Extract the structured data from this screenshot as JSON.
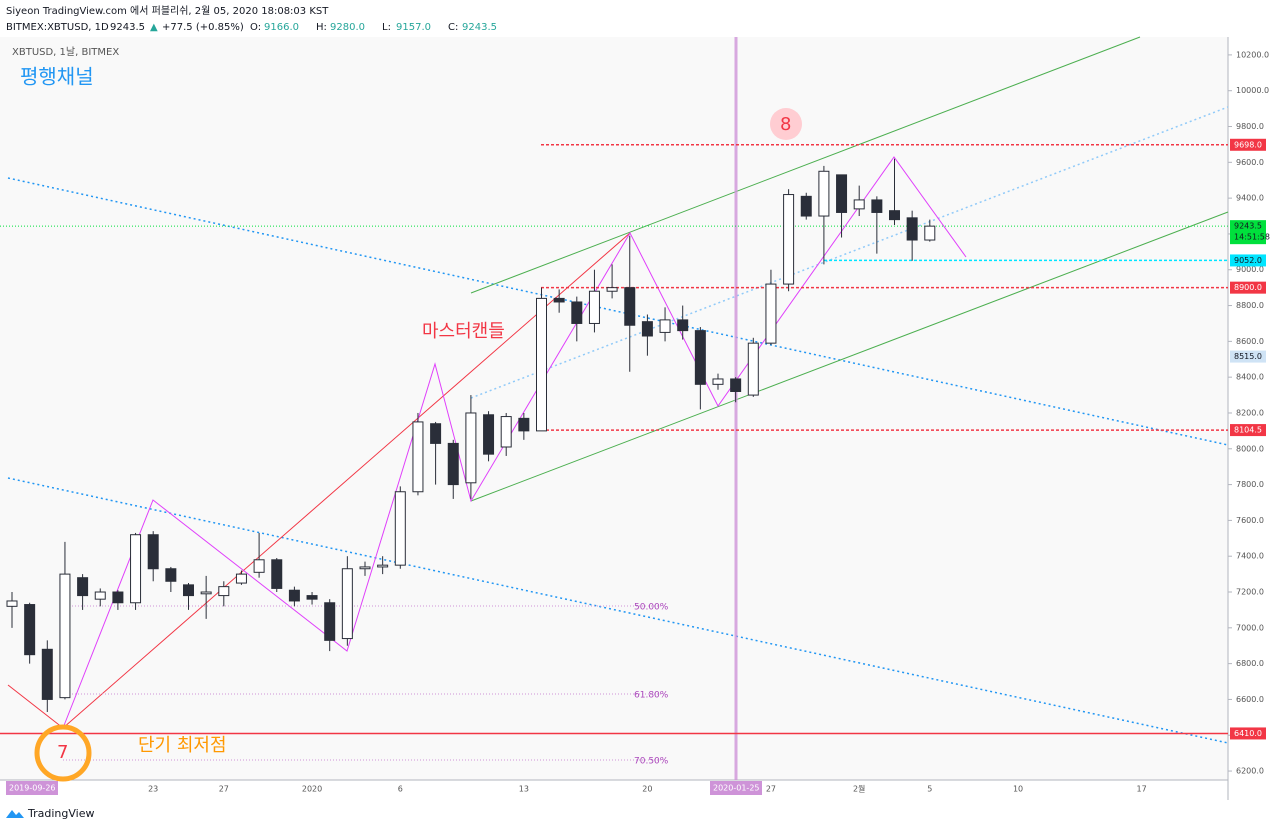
{
  "header": {
    "publisher": "Siyeon TradingView.com 에서 퍼블리쉬, 2월 05, 2020 18:08:03 KST",
    "symbol": "BITMEX:XBTUSD, 1D",
    "last": "9243.5",
    "change": "+77.5 (+0.85%)",
    "ohlc": [
      {
        "label": "O:",
        "value": "9166.0"
      },
      {
        "label": "H:",
        "value": "9280.0"
      },
      {
        "label": "L:",
        "value": "9157.0"
      },
      {
        "label": "C:",
        "value": "9243.5"
      }
    ]
  },
  "footer": {
    "brand": "TradingView"
  },
  "chart_data": {
    "type": "candlestick",
    "subtitle": "XBTUSD, 1날, BITMEX",
    "annotations": {
      "channel": "평행채널",
      "master": "마스터캔들",
      "low": "단기 최저점",
      "wave7": "7",
      "wave8": "8",
      "fib50": "50.00%",
      "fib618": "61.80%",
      "fib705": "70.50%",
      "cursor_left": "2019-09-26",
      "cursor_date": "2020-01-25",
      "countdown": "14:51:58"
    },
    "categories": [
      null,
      null,
      null,
      null,
      null,
      null,
      null,
      null,
      "23",
      null,
      null,
      null,
      "27",
      null,
      null,
      null,
      null,
      "2020",
      null,
      null,
      null,
      null,
      "6",
      null,
      null,
      null,
      null,
      null,
      null,
      "13",
      null,
      null,
      null,
      null,
      null,
      null,
      "20",
      null,
      null,
      null,
      null,
      null,
      null,
      "27",
      null,
      null,
      null,
      null,
      "2월",
      null,
      null,
      null,
      "5",
      null,
      null,
      null,
      null,
      "10",
      null,
      null,
      null,
      null,
      null,
      null,
      "17",
      null,
      null,
      null,
      null
    ],
    "open": [
      7120,
      7130,
      6880,
      6610,
      7280,
      7160,
      7200,
      7140,
      7520,
      7330,
      7240,
      7190,
      7180,
      7250,
      7310,
      7380,
      7210,
      7180,
      7140,
      6940,
      7330,
      7340,
      7350,
      7760,
      8140,
      8030,
      7810,
      8190,
      8010,
      8170,
      8100,
      8840,
      8820,
      8700,
      8880,
      8900,
      8710,
      8650,
      8720,
      8660,
      8360,
      8390,
      8300,
      8590,
      8920,
      9410,
      9300,
      9530,
      9340,
      9390,
      9330,
      9290,
      9166,
      null,
      null,
      null,
      null,
      null,
      null,
      null,
      null,
      null,
      null,
      null,
      null,
      null,
      null,
      null,
      null
    ],
    "high": [
      7200,
      7140,
      6930,
      7480,
      7300,
      7220,
      7210,
      7530,
      7540,
      7340,
      7250,
      7290,
      7260,
      7320,
      7530,
      7390,
      7230,
      7200,
      7160,
      7400,
      7370,
      7400,
      7790,
      8200,
      8150,
      8050,
      8300,
      8210,
      8200,
      8200,
      8900,
      8890,
      8850,
      9000,
      9030,
      9190,
      8750,
      8790,
      8800,
      8680,
      8420,
      8400,
      8620,
      9000,
      9450,
      9430,
      9580,
      9530,
      9470,
      9410,
      9620,
      9330,
      9280,
      null,
      null,
      null,
      null,
      null,
      null,
      null,
      null,
      null,
      null,
      null,
      null,
      null,
      null,
      null,
      null
    ],
    "low": [
      7000,
      6800,
      6530,
      6600,
      7100,
      7120,
      7100,
      7100,
      7260,
      7200,
      7100,
      7050,
      7120,
      7240,
      7280,
      7200,
      7120,
      7130,
      6870,
      6900,
      7290,
      7300,
      7330,
      7740,
      7800,
      7720,
      7720,
      7930,
      7960,
      8050,
      8100,
      8760,
      8600,
      8650,
      8840,
      8430,
      8520,
      8600,
      8610,
      8220,
      8330,
      8260,
      8290,
      8580,
      8880,
      9280,
      9030,
      9180,
      9300,
      9090,
      9250,
      9050,
      9157,
      null,
      null,
      null,
      null,
      null,
      null,
      null,
      null,
      null,
      null,
      null,
      null,
      null,
      null,
      null,
      null
    ],
    "close": [
      7150,
      6850,
      6600,
      7300,
      7180,
      7200,
      7140,
      7520,
      7330,
      7260,
      7180,
      7200,
      7230,
      7300,
      7380,
      7220,
      7150,
      7160,
      6930,
      7330,
      7340,
      7350,
      7760,
      8150,
      8030,
      7800,
      8200,
      7970,
      8180,
      8100,
      8840,
      8820,
      8700,
      8880,
      8900,
      8690,
      8630,
      8720,
      8660,
      8360,
      8390,
      8320,
      8590,
      8920,
      9420,
      9300,
      9550,
      9320,
      9390,
      9320,
      9280,
      9166,
      9243.5,
      null,
      null,
      null,
      null,
      null,
      null,
      null,
      null,
      null,
      null,
      null,
      null,
      null,
      null,
      null,
      null
    ],
    "up_color": "#ffffff",
    "down_color": "#2a2e39",
    "ylim": [
      6150,
      10300
    ],
    "yticks": [
      {
        "value": 6200,
        "label": "6200.0"
      },
      {
        "value": 6400,
        "label": "6400.0"
      },
      {
        "value": 6600,
        "label": "6600.0"
      },
      {
        "value": 6800,
        "label": "6800.0"
      },
      {
        "value": 7000,
        "label": "7000.0"
      },
      {
        "value": 7200,
        "label": "7200.0"
      },
      {
        "value": 7400,
        "label": "7400.0"
      },
      {
        "value": 7600,
        "label": "7600.0"
      },
      {
        "value": 7800,
        "label": "7800.0"
      },
      {
        "value": 8000,
        "label": "8000.0"
      },
      {
        "value": 8200,
        "label": "8200.0"
      },
      {
        "value": 8400,
        "label": "8400.0"
      },
      {
        "value": 8600,
        "label": "8600.0"
      },
      {
        "value": 8800,
        "label": "8800.0"
      },
      {
        "value": 9000,
        "label": "9000.0"
      },
      {
        "value": 9200,
        "label": "9200.0"
      },
      {
        "value": 9400,
        "label": "9400.0"
      },
      {
        "value": 9600,
        "label": "9600.0"
      },
      {
        "value": 9800,
        "label": "9800.0"
      },
      {
        "value": 10000,
        "label": "10000.0"
      },
      {
        "value": 10200,
        "label": "10200.0"
      }
    ],
    "price_lines": [
      {
        "value": 9698,
        "label": "9698.0",
        "color": "#f23645"
      },
      {
        "value": 9243.5,
        "label": "9243.5",
        "color": "#00e03c"
      },
      {
        "value": 9052,
        "label": "9052.0",
        "color": "#00e5ff"
      },
      {
        "value": 8900,
        "label": "8900.0",
        "color": "#f23645"
      },
      {
        "value": 8515,
        "label": "8515.0",
        "color": "#cfe3f5"
      },
      {
        "value": 8104.5,
        "label": "8104.5",
        "color": "#f23645"
      },
      {
        "value": 6410,
        "label": "6410.0",
        "color": "#f23645"
      }
    ]
  }
}
